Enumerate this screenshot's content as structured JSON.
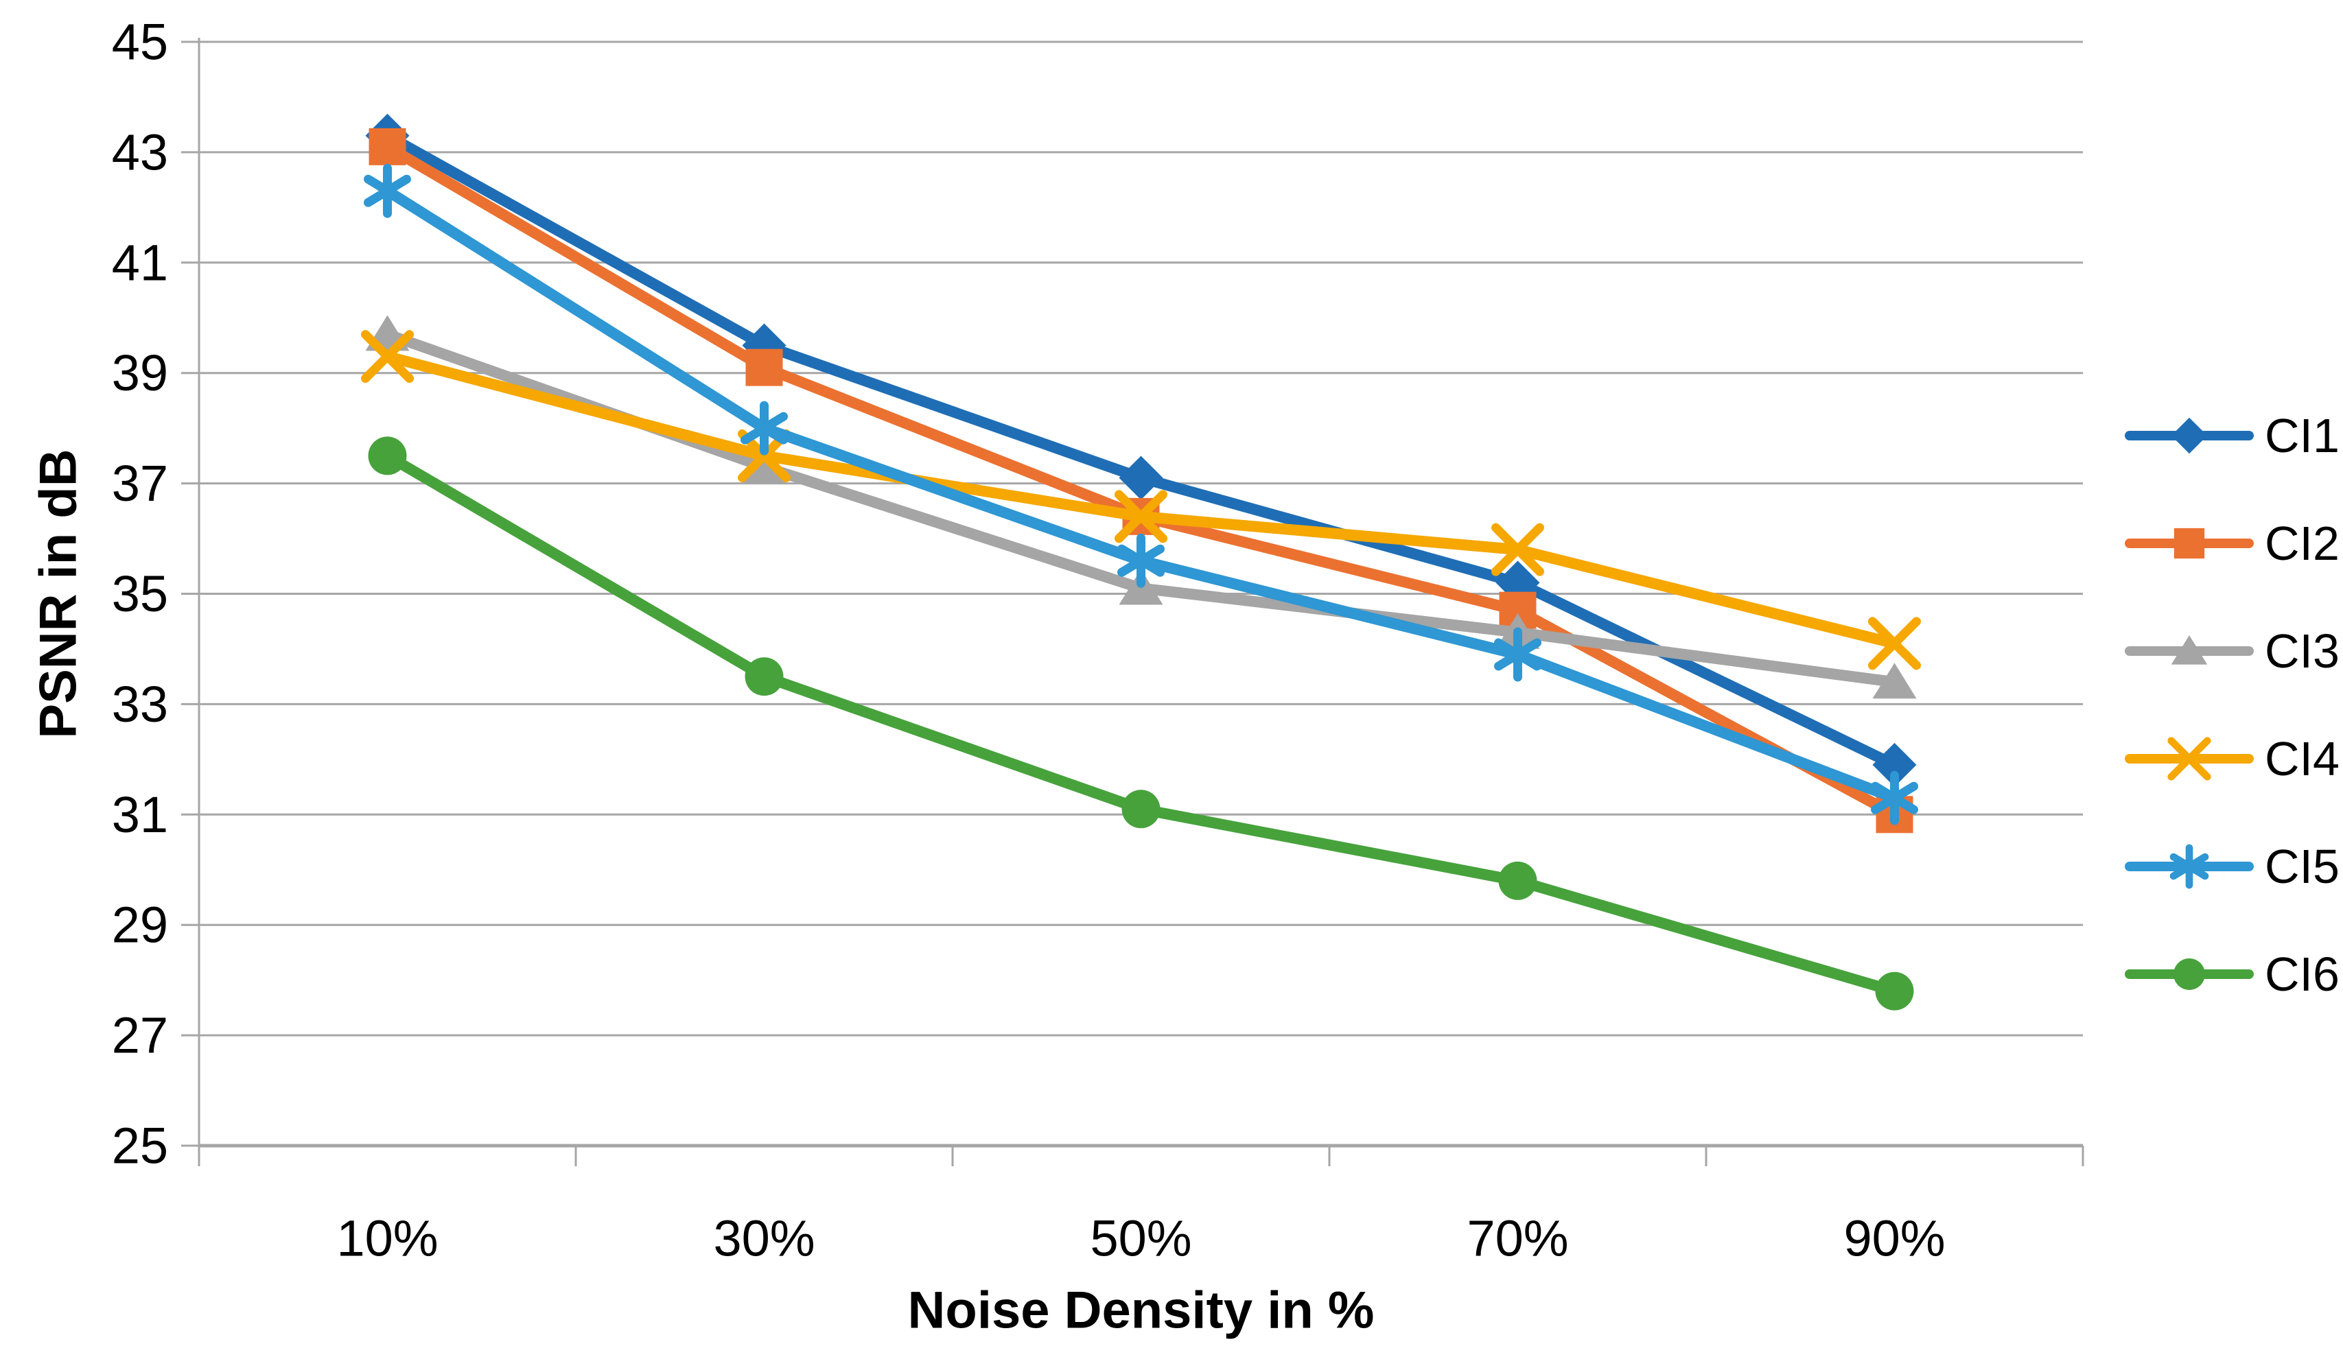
{
  "chart_data": {
    "type": "line",
    "title": "",
    "xlabel": "Noise Density in %",
    "ylabel": "PSNR in dB",
    "categories": [
      "10%",
      "30%",
      "50%",
      "70%",
      "90%"
    ],
    "y_ticks": [
      45,
      43,
      41,
      39,
      37,
      35,
      33,
      31,
      29,
      27,
      25
    ],
    "ylim": [
      25,
      45
    ],
    "grid": "horizontal-only",
    "legend_position": "right-middle",
    "axis_color": "#A6A6A6",
    "text_color": "#000000",
    "series": [
      {
        "name": "CI1",
        "color": "#1F6EB5",
        "marker": "diamond",
        "values": [
          43.3,
          39.5,
          37.1,
          35.2,
          31.9
        ]
      },
      {
        "name": "CI2",
        "color": "#EB7131",
        "marker": "square",
        "values": [
          43.1,
          39.1,
          36.4,
          34.7,
          31.0
        ]
      },
      {
        "name": "CI3",
        "color": "#A5A5A5",
        "marker": "triangle",
        "values": [
          39.7,
          37.3,
          35.1,
          34.3,
          33.4
        ]
      },
      {
        "name": "CI4",
        "color": "#F6A700",
        "marker": "x",
        "values": [
          39.3,
          37.5,
          36.4,
          35.8,
          34.1
        ]
      },
      {
        "name": "CI5",
        "color": "#2E97D4",
        "marker": "asterisk",
        "values": [
          42.3,
          38.0,
          35.6,
          33.9,
          31.3
        ]
      },
      {
        "name": "CI6",
        "color": "#47A23C",
        "marker": "circle",
        "values": [
          37.5,
          33.5,
          31.1,
          29.8,
          27.8
        ]
      }
    ]
  }
}
